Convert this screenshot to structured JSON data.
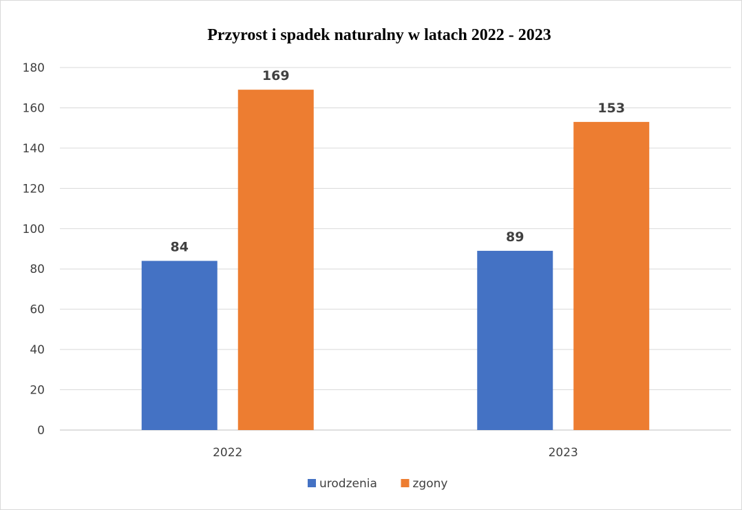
{
  "chart_data": {
    "type": "bar",
    "title": "Przyrost i spadek naturalny w latach 2022 - 2023",
    "categories": [
      "2022",
      "2023"
    ],
    "series": [
      {
        "name": "urodzenia",
        "values": [
          84,
          89
        ],
        "color": "#4472C4"
      },
      {
        "name": "zgony",
        "values": [
          169,
          153
        ],
        "color": "#ED7D31"
      }
    ],
    "ylim": [
      0,
      180
    ],
    "yticks": [
      0,
      20,
      40,
      60,
      80,
      100,
      120,
      140,
      160,
      180
    ],
    "grid": true,
    "legend": "bottom",
    "data_labels": true
  }
}
